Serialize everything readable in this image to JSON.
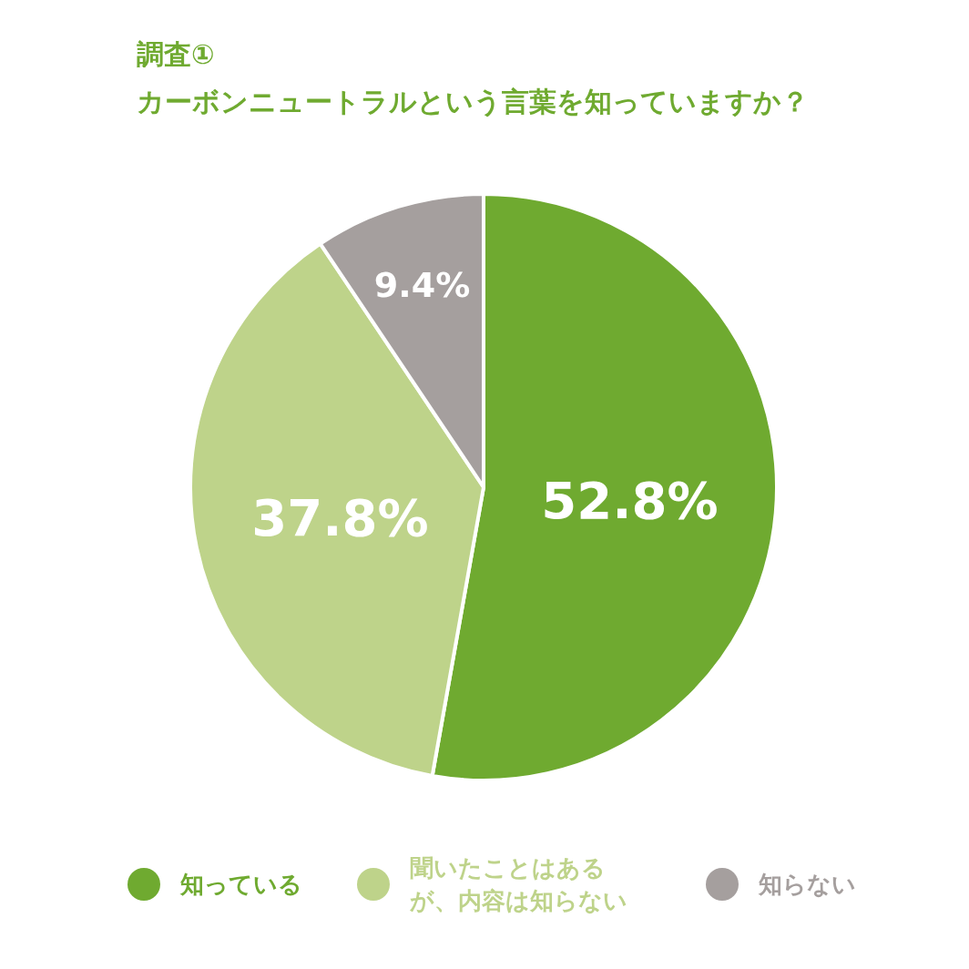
{
  "chart_data": {
    "type": "pie",
    "title": "調査①",
    "subtitle": "カーボンニュートラルという言葉を知っていますか？",
    "categories": [
      "知っている",
      "聞いたことはあるが、内容は知らない",
      "知らない"
    ],
    "values": [
      52.8,
      37.8,
      9.4
    ],
    "colors": [
      "#6faa30",
      "#bed38a",
      "#a59f9e"
    ],
    "value_labels": [
      "52.8%",
      "37.8%",
      "9.4%"
    ],
    "legend": "bottom"
  }
}
